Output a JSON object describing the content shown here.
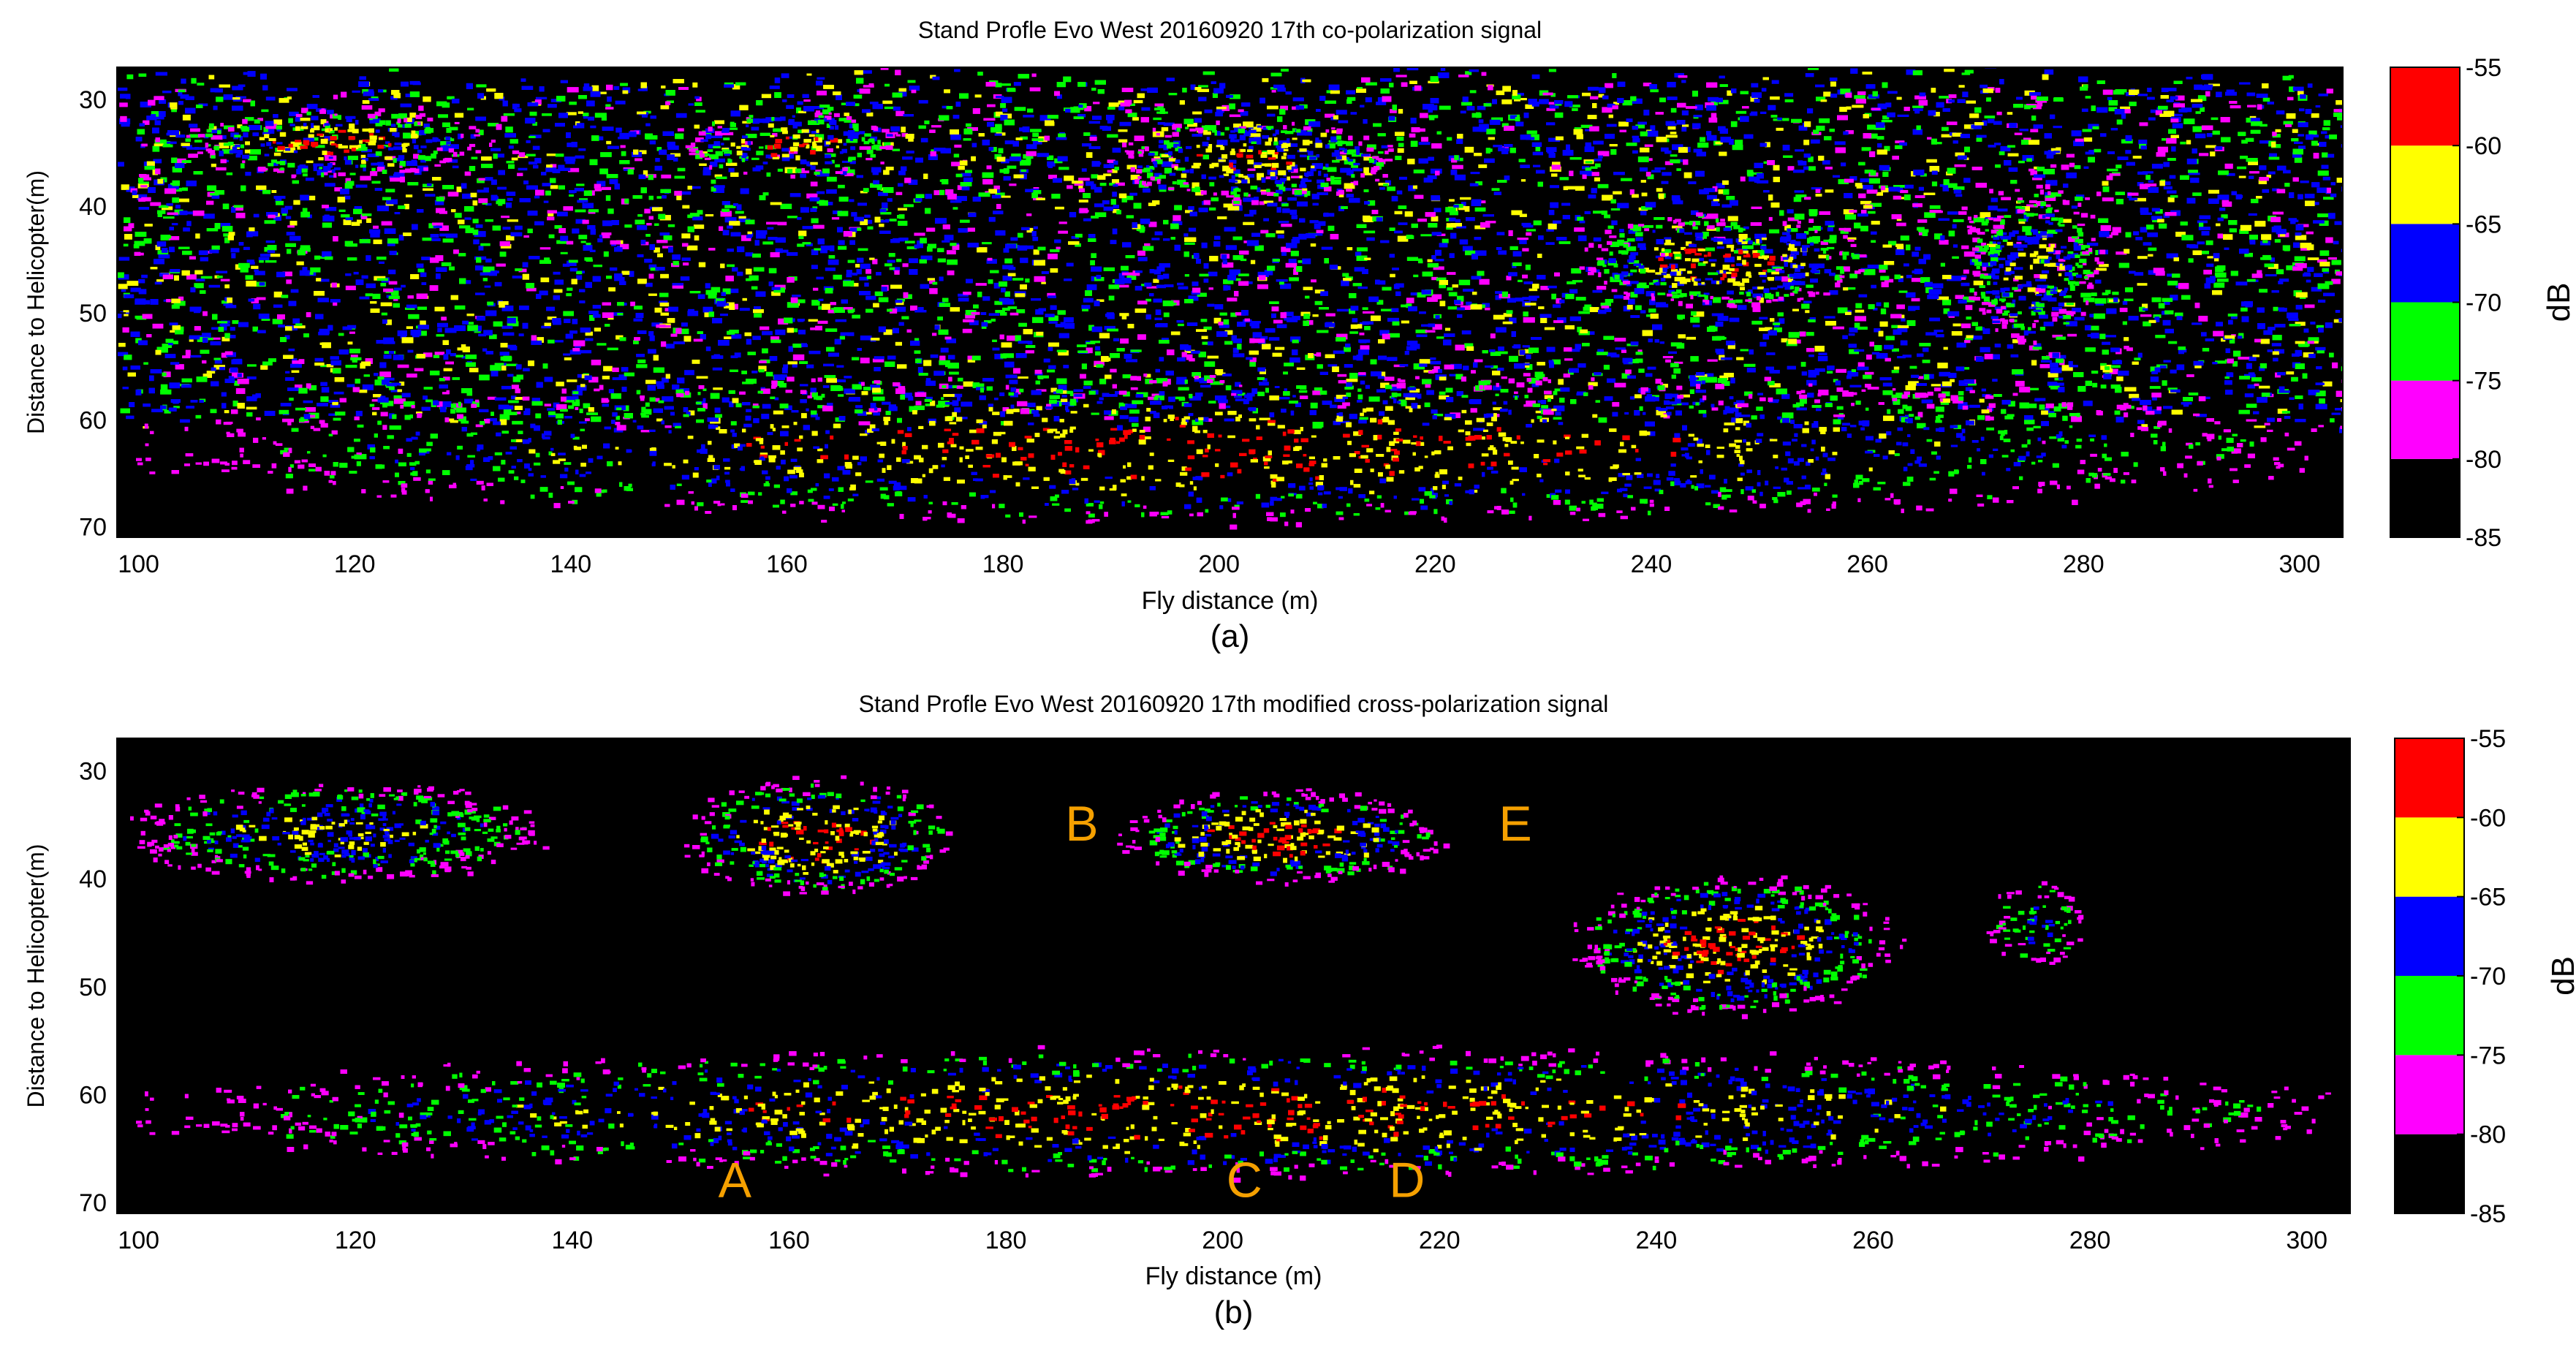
{
  "colors": {
    "bins": [
      "#000000",
      "#ff00ff",
      "#00ff00",
      "#0000ff",
      "#ffff00",
      "#ff0000"
    ],
    "annotation": "#f5a000",
    "axis": "#000000"
  },
  "chart_data": [
    {
      "type": "heatmap",
      "panel_label": "(a)",
      "title": "Stand Profle Evo West 20160920 17th co-polarization signal",
      "xlabel": "Fly distance (m)",
      "ylabel": "Distance to Helicopter(m)",
      "xlim": [
        98,
        304
      ],
      "ylim": [
        27,
        71
      ],
      "y_inverted": true,
      "xticks": [
        100,
        120,
        140,
        160,
        180,
        200,
        220,
        240,
        260,
        280,
        300
      ],
      "yticks": [
        30,
        40,
        50,
        60,
        70
      ],
      "colorbar": {
        "label": "dB",
        "ticks": [
          -55,
          -60,
          -65,
          -70,
          -75,
          -80,
          -85
        ],
        "levels": [
          {
            "from": -85,
            "to": -80,
            "color": "#000000"
          },
          {
            "from": -80,
            "to": -75,
            "color": "#ff00ff"
          },
          {
            "from": -75,
            "to": -70,
            "color": "#00ff00"
          },
          {
            "from": -70,
            "to": -65,
            "color": "#0000ff"
          },
          {
            "from": -65,
            "to": -60,
            "color": "#ffff00"
          },
          {
            "from": -60,
            "to": -55,
            "color": "#ff0000"
          }
        ]
      },
      "features": [
        {
          "kind": "canopy",
          "x": [
            98,
            304
          ],
          "top": 28,
          "bottom": 60,
          "level_db": -70
        },
        {
          "kind": "crown",
          "x": [
            104,
            132
          ],
          "y": [
            31,
            37
          ],
          "level_db": -57
        },
        {
          "kind": "crown",
          "x": [
            150,
            170
          ],
          "y": [
            31,
            37
          ],
          "level_db": -57
        },
        {
          "kind": "crown",
          "x": [
            190,
            216
          ],
          "y": [
            32,
            39
          ],
          "level_db": -57
        },
        {
          "kind": "crown",
          "x": [
            233,
            260
          ],
          "y": [
            41,
            49
          ],
          "level_db": -57
        },
        {
          "kind": "crown",
          "x": [
            268,
            282
          ],
          "y": [
            38,
            52
          ],
          "level_db": -62
        },
        {
          "kind": "ground",
          "x": [
            98,
            304
          ],
          "y": [
            56,
            69
          ],
          "level_db": -58
        }
      ]
    },
    {
      "type": "heatmap",
      "panel_label": "(b)",
      "title": "Stand Profle Evo West 20160920 17th modified cross-polarization signal",
      "xlabel": "Fly distance (m)",
      "ylabel": "Distance to Helicopter(m)",
      "xlim": [
        98,
        304
      ],
      "ylim": [
        27,
        71
      ],
      "y_inverted": true,
      "xticks": [
        100,
        120,
        140,
        160,
        180,
        200,
        220,
        240,
        260,
        280,
        300
      ],
      "yticks": [
        30,
        40,
        50,
        60,
        70
      ],
      "colorbar": {
        "label": "dB",
        "ticks": [
          -55,
          -60,
          -65,
          -70,
          -75,
          -80,
          -85
        ],
        "levels": [
          {
            "from": -85,
            "to": -80,
            "color": "#000000"
          },
          {
            "from": -80,
            "to": -75,
            "color": "#ff00ff"
          },
          {
            "from": -75,
            "to": -70,
            "color": "#00ff00"
          },
          {
            "from": -70,
            "to": -65,
            "color": "#0000ff"
          },
          {
            "from": -65,
            "to": -60,
            "color": "#ffff00"
          },
          {
            "from": -60,
            "to": -55,
            "color": "#ff0000"
          }
        ]
      },
      "annotations": [
        {
          "text": "A",
          "x": 155,
          "y": 68
        },
        {
          "text": "B",
          "x": 187,
          "y": 35
        },
        {
          "text": "C",
          "x": 202,
          "y": 68
        },
        {
          "text": "D",
          "x": 217,
          "y": 68
        },
        {
          "text": "E",
          "x": 227,
          "y": 35
        }
      ],
      "features": [
        {
          "kind": "crown",
          "x": [
            98,
            138
          ],
          "y": [
            31,
            40
          ],
          "level_db": -62
        },
        {
          "kind": "crown",
          "x": [
            150,
            175
          ],
          "y": [
            31,
            41
          ],
          "level_db": -58
        },
        {
          "kind": "crown",
          "x": [
            190,
            220
          ],
          "y": [
            32,
            40
          ],
          "level_db": -58
        },
        {
          "kind": "crown",
          "x": [
            232,
            262
          ],
          "y": [
            40,
            52
          ],
          "level_db": -60
        },
        {
          "kind": "crown",
          "x": [
            270,
            280
          ],
          "y": [
            40,
            48
          ],
          "level_db": -68
        },
        {
          "kind": "ground",
          "x": [
            98,
            304
          ],
          "y": [
            56,
            67
          ],
          "level_db": -58
        }
      ]
    }
  ]
}
